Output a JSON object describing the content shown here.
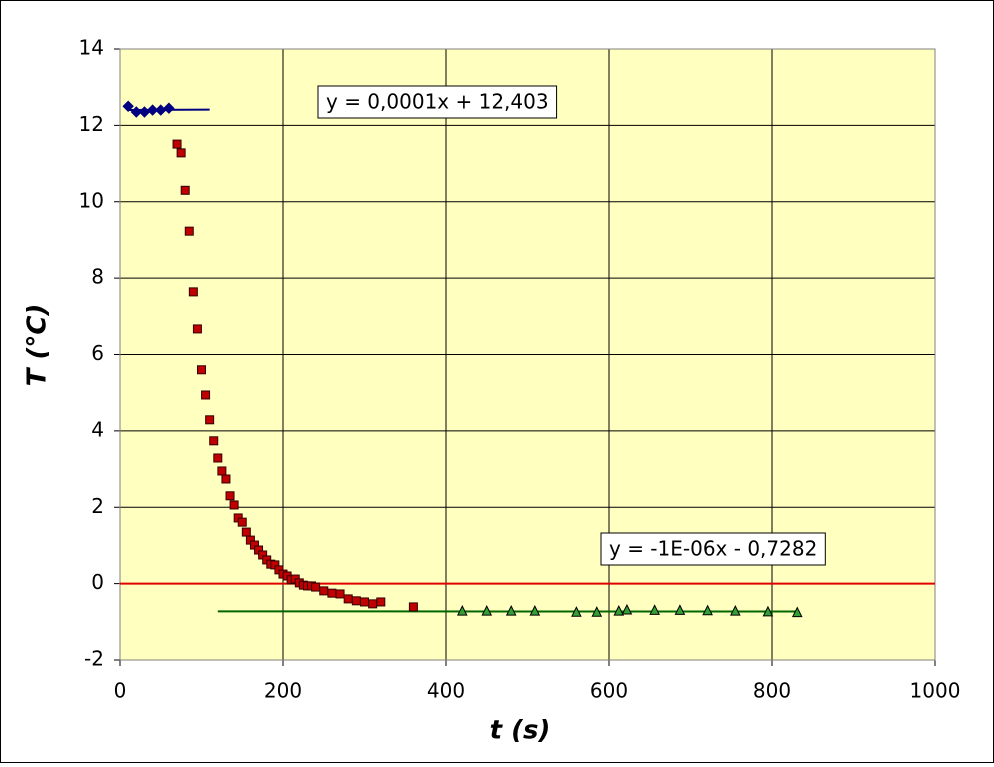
{
  "chart_data": {
    "type": "scatter",
    "x_label": "t  (s)",
    "y_label": "T  (°C)",
    "xlim": [
      0,
      1000
    ],
    "xticks": [
      0,
      200,
      400,
      600,
      800,
      1000
    ],
    "ylim": [
      -2,
      14
    ],
    "yticks": [
      -2,
      0,
      2,
      4,
      6,
      8,
      10,
      12,
      14
    ],
    "grid": true,
    "background": "#ffffc0",
    "reference_line": {
      "value": 0,
      "color": "#e00000"
    },
    "series": [
      {
        "marker": "diamond",
        "color": "#000080",
        "x": [
          10,
          20,
          30,
          40,
          50,
          60
        ],
        "values": [
          12.5,
          12.35,
          12.35,
          12.4,
          12.4,
          12.45
        ]
      },
      {
        "marker": "square",
        "color": "#c00000",
        "x": [
          70,
          75,
          80,
          85,
          90,
          95,
          100,
          105,
          110,
          115,
          120,
          125,
          130,
          135,
          140,
          145,
          150,
          155,
          160,
          165,
          170,
          175,
          180,
          185,
          190,
          195,
          200,
          205,
          210,
          215,
          220,
          225,
          230,
          235,
          240,
          250,
          260,
          270,
          280,
          290,
          300,
          310,
          320,
          360
        ],
        "values": [
          11.51,
          11.28,
          10.3,
          9.23,
          7.64,
          6.67,
          5.6,
          4.94,
          4.29,
          3.74,
          3.29,
          2.95,
          2.74,
          2.3,
          2.06,
          1.72,
          1.61,
          1.35,
          1.14,
          1.01,
          0.88,
          0.75,
          0.62,
          0.51,
          0.49,
          0.36,
          0.25,
          0.2,
          0.1,
          0.12,
          0.02,
          -0.04,
          -0.06,
          -0.06,
          -0.09,
          -0.19,
          -0.25,
          -0.27,
          -0.4,
          -0.45,
          -0.48,
          -0.53,
          -0.48,
          -0.61
        ]
      },
      {
        "marker": "triangle",
        "color": "#33a033",
        "x": [
          420,
          450,
          480,
          509,
          560,
          585,
          612,
          622,
          656,
          687,
          721,
          755,
          795,
          831
        ],
        "values": [
          -0.72,
          -0.72,
          -0.72,
          -0.72,
          -0.75,
          -0.75,
          -0.72,
          -0.69,
          -0.7,
          -0.7,
          -0.71,
          -0.72,
          -0.74,
          -0.76
        ]
      }
    ],
    "trendlines": [
      {
        "color": "#000080",
        "x": [
          10,
          110
        ],
        "values": [
          12.404,
          12.414
        ],
        "label": "y = 0,0001x + 12,403"
      },
      {
        "color": "#006600",
        "x": [
          120,
          831
        ],
        "values": [
          -0.728,
          -0.729
        ],
        "label": "y = -1E-06x - 0,7282"
      }
    ]
  }
}
